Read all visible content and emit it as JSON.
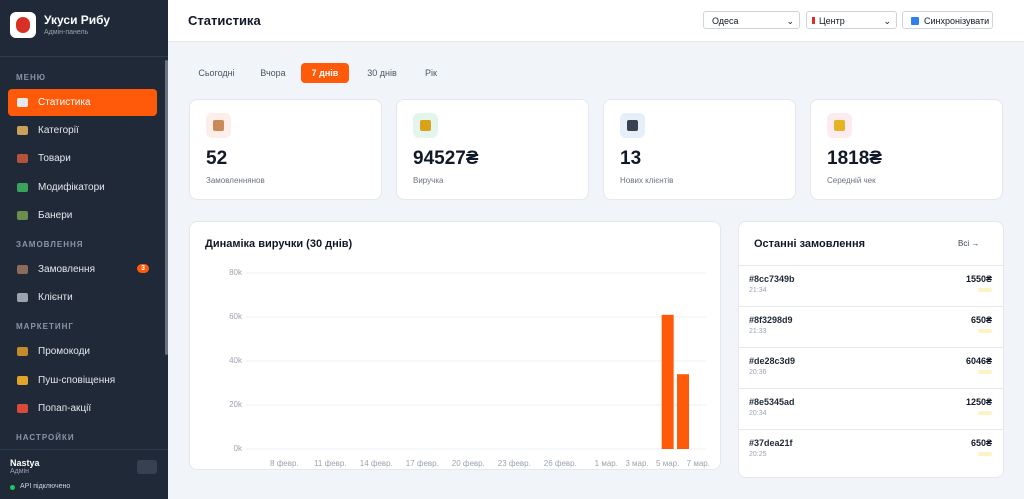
{
  "sidebar": {
    "brand": {
      "title": "Укуси Рибу",
      "subtitle": "Адмін-панель"
    },
    "sections": [
      {
        "heading": "МЕНЮ",
        "items": [
          {
            "label": "Статистика"
          },
          {
            "label": "Категорії"
          },
          {
            "label": "Товари"
          },
          {
            "label": "Модифікатори"
          },
          {
            "label": "Банери"
          }
        ]
      },
      {
        "heading": "ЗАМОВЛЕННЯ",
        "items": [
          {
            "label": "Замовлення",
            "badge": 3
          },
          {
            "label": "Клієнти"
          }
        ]
      },
      {
        "heading": "МАРКЕТИНГ",
        "items": [
          {
            "label": "Промокоди"
          },
          {
            "label": "Пуш-сповіщення"
          },
          {
            "label": "Попап-акції"
          }
        ]
      },
      {
        "heading": "НАСТРОЙКИ",
        "items": []
      }
    ],
    "user": {
      "name": "Nastya",
      "role": "Адмін",
      "status": "API підключено"
    }
  },
  "header": {
    "title": "Статистика",
    "city": "Одеса",
    "point": "Центр",
    "sync": "Синхронізувати"
  },
  "tabs": [
    "Сьогодні",
    "Вчора",
    "7 днів",
    "30 днів",
    "Рік"
  ],
  "stats": [
    {
      "value": "52",
      "label": "Замовленнянов"
    },
    {
      "value": "94527₴",
      "label": "Виручка"
    },
    {
      "value": "13",
      "label": "Нових клієнтів"
    },
    {
      "value": "1818₴",
      "label": "Середній чек"
    }
  ],
  "chart_data": {
    "type": "bar",
    "title": "Динаміка виручки (30 днів)",
    "categories": [
      null,
      null,
      "8 февр.",
      null,
      null,
      "11 февр.",
      null,
      null,
      "14 февр.",
      null,
      null,
      "17 февр.",
      null,
      null,
      "20 февр.",
      null,
      null,
      "23 февр.",
      null,
      null,
      "26 февр.",
      null,
      null,
      "1 мар.",
      null,
      "3 мар.",
      null,
      "5 мар.",
      null,
      "7 мар."
    ],
    "values": [
      0,
      0,
      0,
      0,
      0,
      0,
      0,
      0,
      0,
      0,
      0,
      0,
      0,
      0,
      0,
      0,
      0,
      0,
      0,
      0,
      0,
      0,
      0,
      0,
      0,
      0,
      0,
      61000,
      34000,
      0
    ],
    "color": "#ff5a0a",
    "ylim": [
      0,
      80000
    ],
    "yticks": [
      {
        "value": 0,
        "label": "0k"
      },
      {
        "value": 20000,
        "label": "20k"
      },
      {
        "value": 40000,
        "label": "40k"
      },
      {
        "value": 60000,
        "label": "60k"
      },
      {
        "value": 80000,
        "label": "80k"
      }
    ],
    "grid": true
  },
  "orders": {
    "title": "Останні замовлення",
    "link": "Всі →",
    "rows": [
      {
        "id": "#8cc7349b",
        "time": "21:34",
        "price": "1550₴"
      },
      {
        "id": "#8f3298d9",
        "time": "21:33",
        "price": "650₴"
      },
      {
        "id": "#de28c3d9",
        "time": "20:36",
        "price": "6046₴"
      },
      {
        "id": "#8e5345ad",
        "time": "20:34",
        "price": "1250₴"
      },
      {
        "id": "#37dea21f",
        "time": "20:25",
        "price": "650₴"
      }
    ]
  }
}
